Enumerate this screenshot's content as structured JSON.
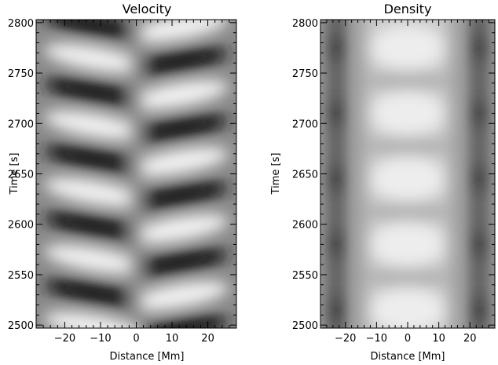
{
  "chart_data": [
    {
      "type": "heatmap",
      "title": "Velocity",
      "xlabel": "Distance [Mm]",
      "ylabel": "Time [s]",
      "xlim": [
        -28,
        28
      ],
      "ylim": [
        2497,
        2803
      ],
      "x_ticks": [
        -20,
        -10,
        0,
        10,
        20
      ],
      "y_ticks": [
        2500,
        2550,
        2600,
        2650,
        2700,
        2750,
        2800
      ],
      "colormap": "grayscale",
      "grid": false,
      "pattern": "antisymmetric oscillation: alternating dark/bright lobes on either side of x=0, period ~67 s, lobes tilted in time"
    },
    {
      "type": "heatmap",
      "title": "Density",
      "xlabel": "Distance [Mm]",
      "ylabel": "Time [s]",
      "xlim": [
        -28,
        28
      ],
      "ylim": [
        2497,
        2803
      ],
      "x_ticks": [
        -20,
        -10,
        0,
        10,
        20
      ],
      "y_ticks": [
        2500,
        2550,
        2600,
        2650,
        2700,
        2750,
        2800
      ],
      "colormap": "grayscale",
      "grid": false,
      "pattern": "symmetric: bright central blobs near x=0 (peaks ~2515, 2580, 2645, 2710, 2775 s), dark bands near x=±23"
    }
  ]
}
